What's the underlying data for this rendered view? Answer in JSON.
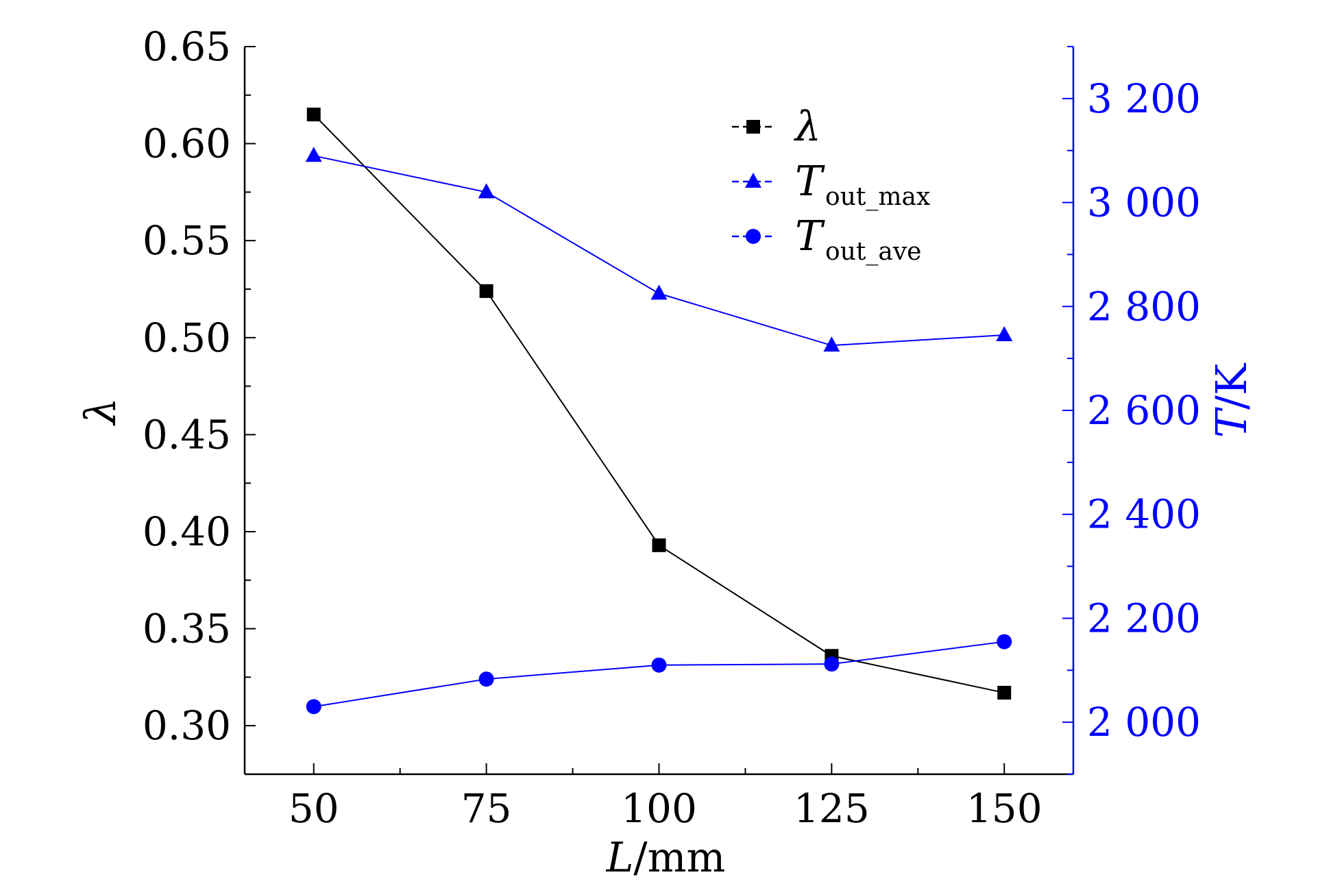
{
  "chart_data": {
    "type": "line",
    "title": "",
    "x": [
      50,
      75,
      100,
      125,
      150
    ],
    "xlabel": {
      "italic": "L",
      "rest": "/mm"
    },
    "xlim": [
      40,
      160
    ],
    "xticks": [
      50,
      75,
      100,
      125,
      150
    ],
    "xtick_labels": [
      "50",
      "75",
      "100",
      "125",
      "150"
    ],
    "left_axis": {
      "label": "λ",
      "ylim": [
        0.275,
        0.65
      ],
      "ticks": [
        0.3,
        0.35,
        0.4,
        0.45,
        0.5,
        0.55,
        0.6,
        0.65
      ],
      "tick_labels": [
        "0.30",
        "0.35",
        "0.40",
        "0.45",
        "0.50",
        "0.55",
        "0.60",
        "0.65"
      ]
    },
    "right_axis": {
      "label": {
        "italic": "T",
        "rest": "/K"
      },
      "ylim": [
        1900,
        3300
      ],
      "ticks": [
        2000,
        2200,
        2400,
        2600,
        2800,
        3000,
        3200
      ],
      "tick_labels": [
        "2 000",
        "2 200",
        "2 400",
        "2 600",
        "2 800",
        "3 000",
        "3 200"
      ]
    },
    "series": [
      {
        "name": "λ",
        "label_main": "λ",
        "label_sub": "",
        "axis": "left",
        "marker": "square",
        "color": "#000000",
        "values": [
          0.615,
          0.524,
          0.393,
          0.336,
          0.317
        ]
      },
      {
        "name": "T out_max",
        "label_main": "T",
        "label_sub": "out_max",
        "axis": "right",
        "marker": "triangle",
        "color": "#0000ff",
        "values": [
          3090,
          3020,
          2825,
          2725,
          2745
        ]
      },
      {
        "name": "T out_ave",
        "label_main": "T",
        "label_sub": "out_ave",
        "axis": "right",
        "marker": "circle",
        "color": "#0000ff",
        "values": [
          2030,
          2083,
          2110,
          2112,
          2155
        ]
      }
    ],
    "legend": "top-right",
    "grid": false,
    "colors": {
      "left_axis": "#000000",
      "right_axis": "#0000ff"
    }
  }
}
